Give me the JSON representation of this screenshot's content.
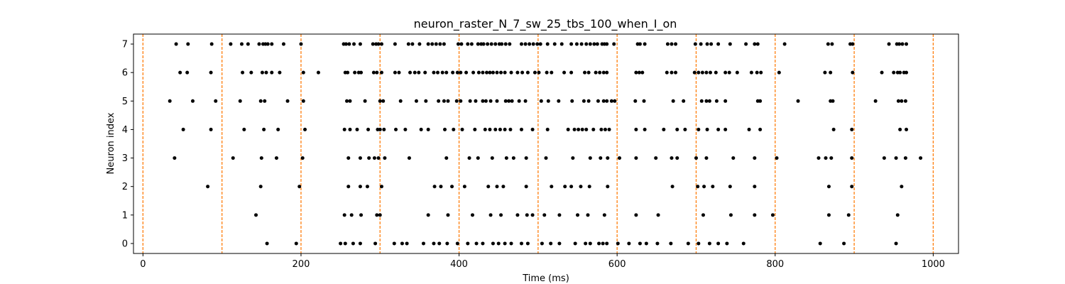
{
  "chart_data": {
    "type": "scatter",
    "title": "neuron_raster_N_7_sw_25_tbs_100_when_I_on",
    "xlabel": "Time (ms)",
    "ylabel": "Neuron index",
    "xlim": [
      -12,
      1032
    ],
    "ylim": [
      -0.35,
      7.35
    ],
    "xticks": [
      0,
      200,
      400,
      600,
      800,
      1000
    ],
    "yticks": [
      0,
      1,
      2,
      3,
      4,
      5,
      6,
      7
    ],
    "grid": false,
    "marker_color": "#000000",
    "vlines": {
      "x": [
        0,
        100,
        200,
        300,
        400,
        500,
        600,
        700,
        800,
        900,
        1000
      ],
      "color": "#ff7f0e",
      "style": "dashed"
    },
    "spikes": [
      {
        "neuron": 7,
        "times": [
          42,
          57,
          87,
          111,
          125,
          133,
          147,
          152,
          155,
          158,
          163,
          178,
          200,
          254,
          257,
          261,
          267,
          275,
          291,
          295,
          298,
          302,
          319,
          336,
          341,
          350,
          361,
          366,
          371,
          376,
          381,
          399,
          403,
          411,
          416,
          424,
          428,
          431,
          436,
          441,
          446,
          451,
          454,
          459,
          464,
          479,
          484,
          489,
          494,
          499,
          503,
          512,
          521,
          530,
          542,
          549,
          555,
          561,
          566,
          571,
          575,
          581,
          584,
          587,
          596,
          626,
          629,
          635,
          664,
          669,
          674,
          699,
          706,
          714,
          719,
          728,
          743,
          763,
          774,
          778,
          812,
          867,
          872,
          895,
          898,
          944,
          954,
          957,
          961,
          966
        ]
      },
      {
        "neuron": 6,
        "times": [
          47,
          56,
          86,
          126,
          137,
          151,
          156,
          163,
          173,
          203,
          222,
          256,
          259,
          268,
          273,
          276,
          292,
          296,
          302,
          319,
          324,
          338,
          344,
          349,
          357,
          368,
          373,
          379,
          384,
          392,
          398,
          402,
          409,
          418,
          425,
          430,
          435,
          439,
          443,
          448,
          453,
          458,
          466,
          474,
          480,
          487,
          496,
          501,
          511,
          517,
          533,
          542,
          559,
          564,
          573,
          578,
          583,
          587,
          624,
          628,
          632,
          663,
          669,
          674,
          698,
          703,
          708,
          713,
          718,
          725,
          737,
          742,
          752,
          770,
          777,
          782,
          805,
          863,
          870,
          898,
          935,
          950,
          955,
          958,
          963,
          966
        ]
      },
      {
        "neuron": 5,
        "times": [
          34,
          63,
          92,
          123,
          149,
          154,
          183,
          203,
          258,
          262,
          281,
          300,
          304,
          326,
          346,
          358,
          374,
          381,
          386,
          397,
          402,
          414,
          421,
          430,
          434,
          440,
          448,
          459,
          463,
          467,
          476,
          484,
          504,
          513,
          526,
          543,
          558,
          564,
          576,
          583,
          587,
          593,
          597,
          623,
          634,
          671,
          684,
          707,
          713,
          717,
          726,
          737,
          778,
          781,
          829,
          870,
          873,
          927,
          956,
          960,
          965
        ]
      },
      {
        "neuron": 4,
        "times": [
          51,
          86,
          128,
          153,
          171,
          205,
          255,
          262,
          271,
          285,
          297,
          300,
          305,
          320,
          332,
          352,
          361,
          382,
          393,
          404,
          420,
          433,
          439,
          446,
          452,
          458,
          465,
          479,
          493,
          512,
          538,
          546,
          551,
          556,
          561,
          570,
          580,
          585,
          590,
          624,
          635,
          659,
          676,
          686,
          703,
          714,
          728,
          737,
          767,
          781,
          874,
          897,
          958,
          966
        ]
      },
      {
        "neuron": 3,
        "times": [
          40,
          114,
          150,
          169,
          202,
          260,
          275,
          286,
          293,
          298,
          306,
          337,
          384,
          413,
          424,
          442,
          460,
          469,
          485,
          510,
          544,
          566,
          579,
          588,
          603,
          624,
          649,
          669,
          676,
          700,
          713,
          747,
          774,
          802,
          855,
          864,
          871,
          897,
          938,
          953,
          965,
          984
        ]
      },
      {
        "neuron": 2,
        "times": [
          82,
          149,
          198,
          260,
          275,
          284,
          302,
          369,
          377,
          391,
          407,
          437,
          448,
          456,
          485,
          517,
          534,
          542,
          554,
          565,
          588,
          670,
          702,
          710,
          721,
          743,
          774,
          868,
          897,
          960
        ]
      },
      {
        "neuron": 1,
        "times": [
          143,
          255,
          264,
          276,
          296,
          300,
          361,
          386,
          417,
          440,
          453,
          474,
          486,
          493,
          508,
          527,
          550,
          563,
          584,
          624,
          652,
          709,
          744,
          774,
          797,
          868,
          893,
          955
        ]
      },
      {
        "neuron": 0,
        "times": [
          157,
          194,
          250,
          256,
          266,
          275,
          294,
          318,
          328,
          334,
          355,
          368,
          375,
          385,
          398,
          411,
          422,
          430,
          443,
          450,
          458,
          466,
          479,
          487,
          505,
          516,
          527,
          547,
          560,
          566,
          577,
          582,
          587,
          601,
          615,
          629,
          637,
          651,
          668,
          690,
          703,
          717,
          728,
          739,
          760,
          857,
          887,
          953
        ]
      }
    ]
  }
}
